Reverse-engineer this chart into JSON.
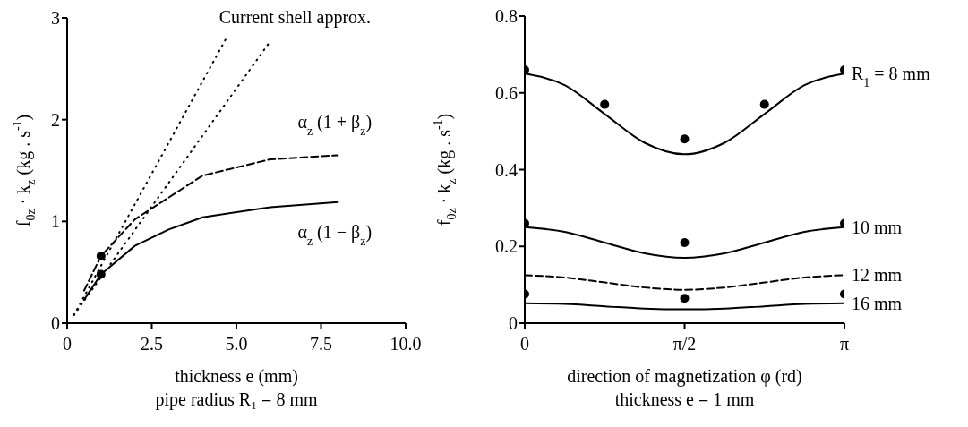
{
  "chart_data": [
    {
      "type": "line",
      "xlabel": "thickness e (mm)",
      "ylabel": "f$_{0z}$ · k$_{z}$  (kg . s$^{-1}$)",
      "annotations": [
        "pipe radius R₁ = 8 mm"
      ],
      "xlim": [
        0,
        10
      ],
      "ylim": [
        0,
        3
      ],
      "xticks": [
        0,
        2.5,
        {
          "value": 5,
          "label": "5.0"
        },
        7.5,
        {
          "value": 10,
          "label": "10.0"
        }
      ],
      "yticks": [
        0,
        1,
        2,
        3
      ],
      "series": [
        {
          "name": "Current shell approx.",
          "color": "#000000",
          "line_style": "dotted",
          "marker": "none",
          "x": [
            0.2,
            4.7
          ],
          "values": [
            0.08,
            2.8
          ]
        },
        {
          "color": "#000000",
          "line_style": "dotted",
          "marker": "none",
          "x": [
            0.2,
            6.0
          ],
          "values": [
            0.08,
            2.77
          ]
        },
        {
          "name": "α$_{z}$ (1 + β$_{z}$)",
          "color": "#000000",
          "line_style": "dashed",
          "marker": "none",
          "x": [
            0.5,
            1,
            2,
            4,
            6,
            8
          ],
          "values": [
            0.32,
            0.66,
            1.02,
            1.45,
            1.61,
            1.65
          ]
        },
        {
          "name": "α$_{z}$ (1 − β$_{z}$)",
          "color": "#000000",
          "line_style": "solid",
          "marker": "none",
          "x": [
            0.5,
            1,
            2,
            3,
            4,
            6,
            8
          ],
          "values": [
            0.23,
            0.48,
            0.76,
            0.92,
            1.04,
            1.14,
            1.19
          ]
        },
        {
          "type": "scatter",
          "color": "#000000",
          "marker": "circle",
          "x": [
            1,
            1
          ],
          "values": [
            0.66,
            0.48
          ]
        }
      ]
    },
    {
      "type": "line",
      "xlabel": "direction of magnetization φ (rd)",
      "ylabel": "f$_{0z}$ · k$_{z}$  (kg . s$^{-1}$)",
      "annotations": [
        "thickness e = 1 mm"
      ],
      "xlim": [
        0,
        3.1416
      ],
      "ylim": [
        0,
        0.8
      ],
      "xticks": [
        {
          "value": 0,
          "label": "0"
        },
        {
          "value": 1.5708,
          "label": "π/2"
        },
        {
          "value": 3.1416,
          "label": "π"
        }
      ],
      "yticks": [
        0,
        0.2,
        0.4,
        0.6,
        0.8
      ],
      "series": [
        {
          "name": "R$_{1}$ = 8 mm",
          "color": "#000000",
          "line_style": "solid",
          "marker": "none",
          "x": [
            0,
            0.3927,
            0.7854,
            1.1781,
            1.5708,
            1.9635,
            2.3562,
            2.7489,
            3.1416
          ],
          "values": [
            0.65,
            0.62,
            0.545,
            0.47,
            0.44,
            0.47,
            0.545,
            0.62,
            0.65
          ]
        },
        {
          "name": "10 mm",
          "color": "#000000",
          "line_style": "solid",
          "marker": "none",
          "x": [
            0,
            0.3927,
            0.7854,
            1.1781,
            1.5708,
            1.9635,
            2.3562,
            2.7489,
            3.1416
          ],
          "values": [
            0.25,
            0.238,
            0.21,
            0.182,
            0.17,
            0.182,
            0.21,
            0.238,
            0.25
          ]
        },
        {
          "name": "12 mm",
          "color": "#000000",
          "line_style": "dashed",
          "marker": "none",
          "x": [
            0,
            0.3927,
            0.7854,
            1.1781,
            1.5708,
            1.9635,
            2.3562,
            2.7489,
            3.1416
          ],
          "values": [
            0.125,
            0.119,
            0.106,
            0.093,
            0.087,
            0.093,
            0.106,
            0.119,
            0.125
          ]
        },
        {
          "name": "16 mm",
          "color": "#000000",
          "line_style": "solid",
          "marker": "none",
          "x": [
            0,
            0.3927,
            0.7854,
            1.1781,
            1.5708,
            1.9635,
            2.3562,
            2.7489,
            3.1416
          ],
          "values": [
            0.052,
            0.05,
            0.044,
            0.038,
            0.036,
            0.038,
            0.044,
            0.05,
            0.052
          ]
        },
        {
          "type": "scatter",
          "color": "#000000",
          "marker": "circle",
          "x": [
            0,
            0.7854,
            1.5708,
            2.3562,
            3.1416,
            0,
            1.5708,
            3.1416,
            0,
            1.5708,
            3.1416
          ],
          "values": [
            0.66,
            0.57,
            0.48,
            0.57,
            0.66,
            0.26,
            0.21,
            0.26,
            0.076,
            0.065,
            0.076
          ]
        }
      ]
    }
  ]
}
